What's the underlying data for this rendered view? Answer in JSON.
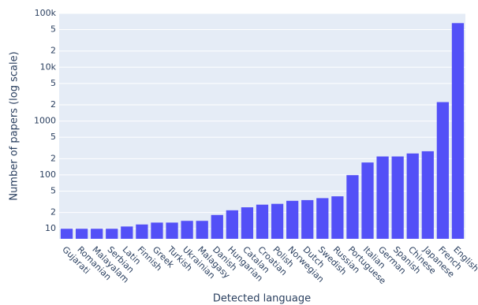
{
  "chart_data": {
    "type": "bar",
    "x_label": "Detected language",
    "y_label": "Number of papers (log scale)",
    "categories": [
      "Gujarati",
      "Romanian",
      "Malayalam",
      "Serbian",
      "Latin",
      "Finnish",
      "Greek",
      "Turkish",
      "Ukrainian",
      "Malagasy",
      "Danish",
      "Hungarian",
      "Catalan",
      "Croatian",
      "Polish",
      "Norwegian",
      "Dutch",
      "Swedish",
      "Russian",
      "Portuguese",
      "Italian",
      "German",
      "Spanish",
      "Chinese",
      "Japanese",
      "French",
      "English"
    ],
    "values": [
      10,
      10,
      10,
      10,
      11,
      12,
      13,
      13,
      14,
      14,
      18,
      22,
      25,
      28,
      29,
      33,
      34,
      37,
      40,
      99,
      170,
      220,
      220,
      250,
      275,
      2250,
      66000
    ],
    "color": "#5350f7",
    "log_y": true,
    "grid": true,
    "ylim": [
      6.5,
      100000
    ],
    "yticks": [
      10,
      {
        "value": 20,
        "label": "2"
      },
      {
        "value": 50,
        "label": "5"
      },
      100,
      {
        "value": 200,
        "label": "2"
      },
      {
        "value": 500,
        "label": "5"
      },
      1000,
      {
        "value": 2000,
        "label": "2"
      },
      {
        "value": 5000,
        "label": "5"
      },
      {
        "value": 10000,
        "label": "10k"
      },
      {
        "value": 20000,
        "label": "2"
      },
      {
        "value": 50000,
        "label": "5"
      },
      {
        "value": 100000,
        "label": "100k"
      }
    ]
  }
}
